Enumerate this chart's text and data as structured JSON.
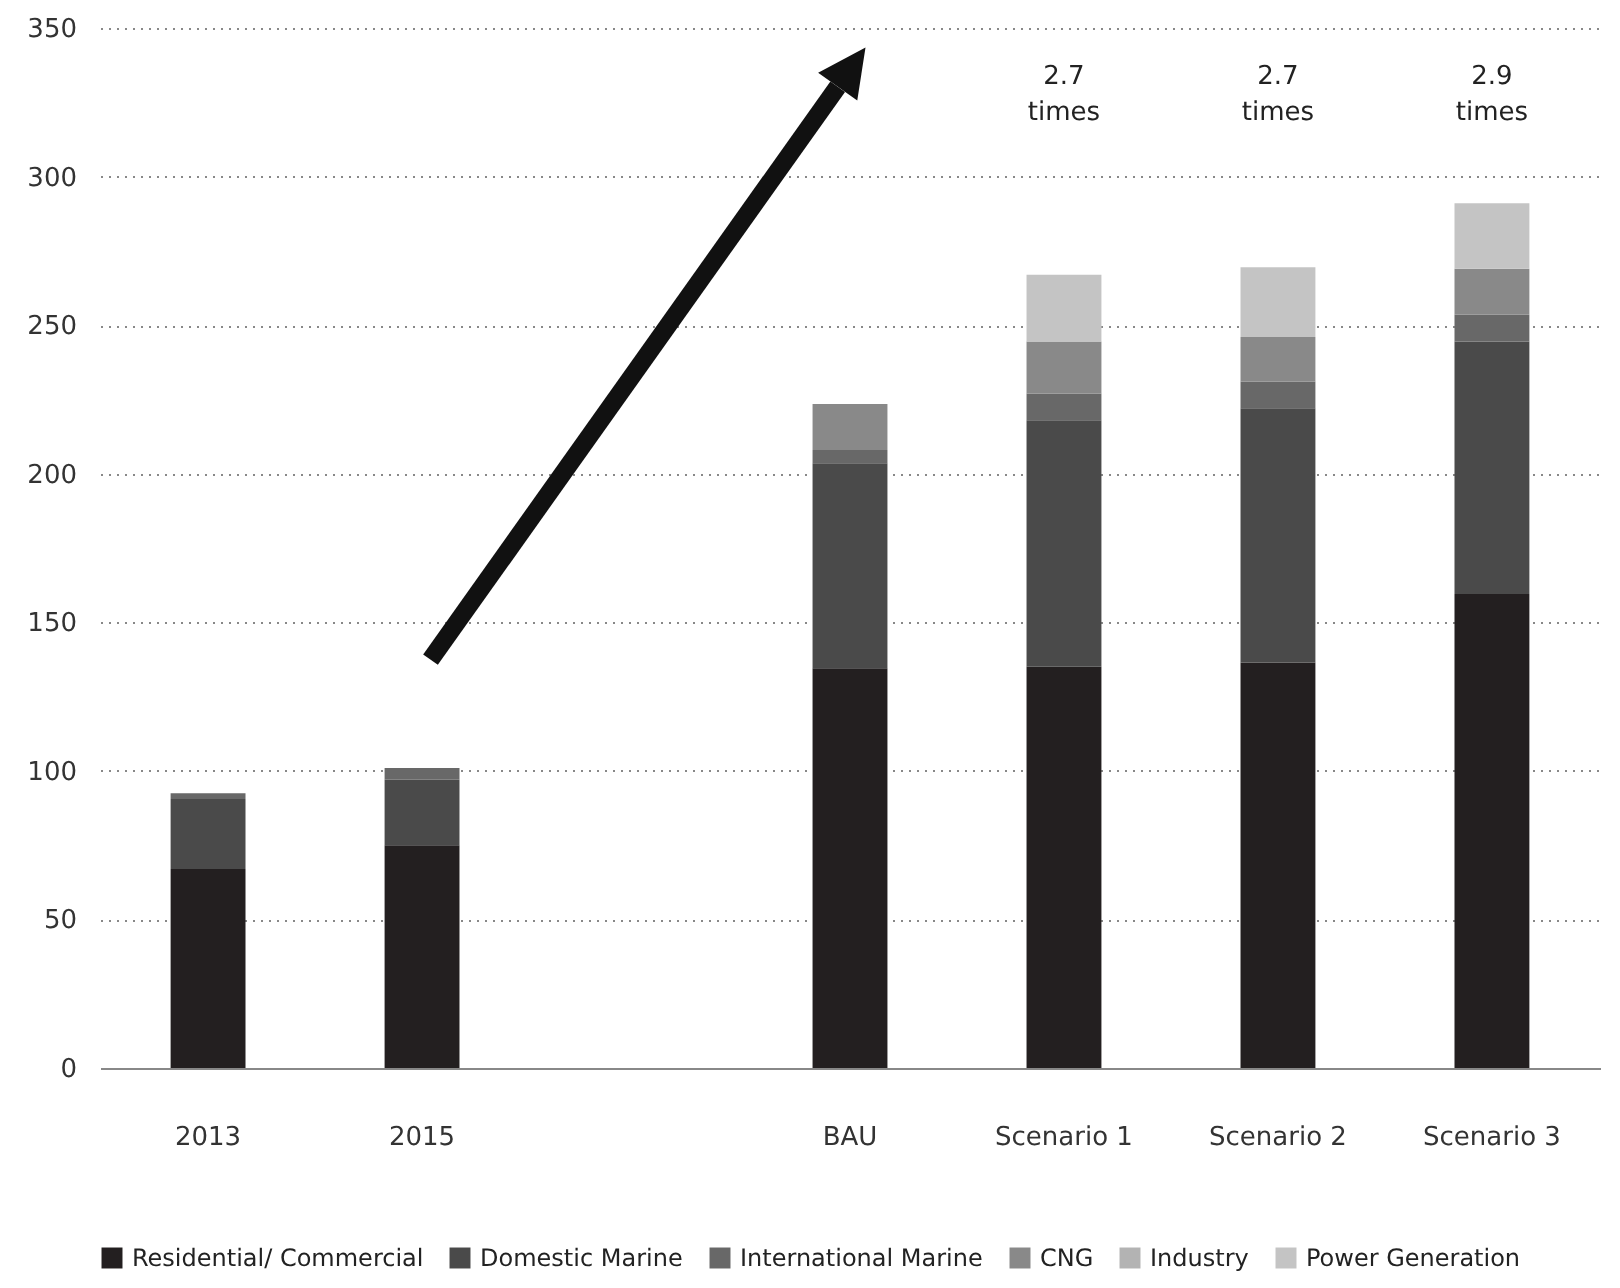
{
  "chart_data": {
    "type": "bar",
    "stacked": true,
    "categories": [
      "2013",
      "2015",
      null,
      "BAU",
      "Scenario 1",
      "Scenario 2",
      "Scenario 3"
    ],
    "series": [
      {
        "name": "Residential/ Commercial",
        "color": "#231f20",
        "values": [
          67,
          75,
          null,
          134.5,
          135,
          136.5,
          159.5
        ]
      },
      {
        "name": "Domestic Marine",
        "color": "#4a4a4a",
        "values": [
          23.5,
          22,
          null,
          69,
          83,
          85.5,
          85
        ]
      },
      {
        "name": "International Marine",
        "color": "#686868",
        "values": [
          2,
          4,
          null,
          4.5,
          9,
          9,
          9
        ]
      },
      {
        "name": "CNG",
        "color": "#898989",
        "values": [
          null,
          null,
          null,
          15.5,
          17.5,
          15,
          15.5
        ]
      },
      {
        "name": "Industry",
        "color": "#b3b3b3",
        "values": [
          null,
          null,
          null,
          null,
          null,
          null,
          null
        ]
      },
      {
        "name": "Power Generation",
        "color": "#c4c4c4",
        "values": [
          null,
          null,
          null,
          null,
          22.5,
          23.5,
          22
        ]
      }
    ],
    "ylim": [
      0,
      350
    ],
    "yticks": [
      0,
      50,
      100,
      150,
      200,
      250,
      300,
      350
    ],
    "grid": "y",
    "legend": "bottom",
    "annotations": [
      "2.7\ntimes",
      "2.7\ntimes",
      "2.9\ntimes"
    ]
  }
}
